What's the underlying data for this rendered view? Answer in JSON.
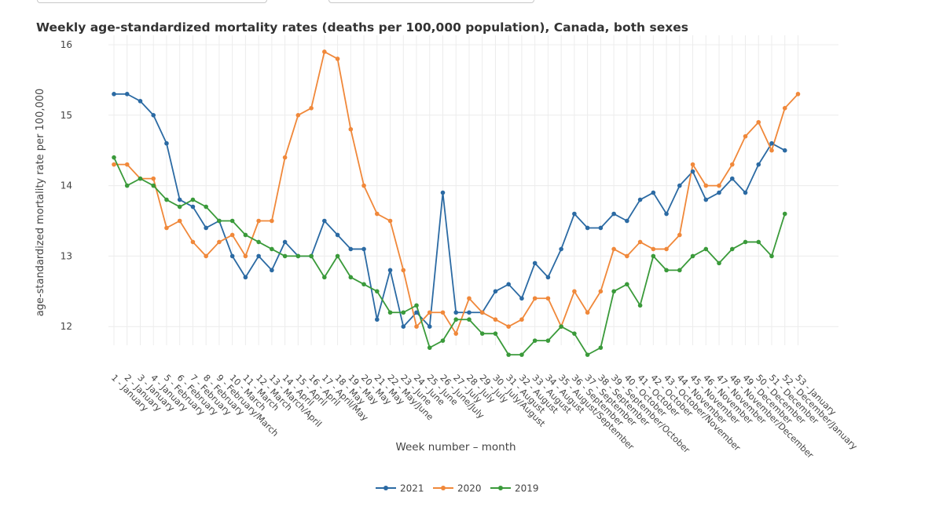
{
  "chart_data": {
    "type": "line",
    "title": "Weekly age-standardized mortality rates (deaths per 100,000 population), Canada, both sexes",
    "xlabel": "Week number – month",
    "ylabel": "age-standardized mortality rate per 100,000",
    "ylim": [
      11.4,
      16.1
    ],
    "yticks": [
      12,
      13,
      14,
      15,
      16
    ],
    "grid": true,
    "legend_position": "bottom-center",
    "categories": [
      "1 - January",
      "2 - January",
      "3 - January",
      "4 - January",
      "5 - February",
      "6 - February",
      "7 - February",
      "8 - February",
      "9 - February/March",
      "10 - March",
      "11 - March",
      "12 - March",
      "13 - March/April",
      "14 - April",
      "15 - April",
      "16 - April",
      "17 - April/May",
      "18 - May",
      "19 - May",
      "20 - May",
      "21 - May",
      "22 - May/June",
      "23 - June",
      "24 - June",
      "25 - June",
      "26 - June/July",
      "27 - July",
      "28 - July",
      "29 - July",
      "30 - July/August",
      "31 - August",
      "32 - August",
      "33 - August",
      "34 - August",
      "35 - August/September",
      "36 - September",
      "37 - September",
      "38 - September",
      "39 - September/October",
      "40 - October",
      "41 - October",
      "42 - October",
      "43 - October/November",
      "44 - November",
      "45 - November",
      "46 - November",
      "47 - November",
      "48 - November/December",
      "49 - December",
      "50 - December",
      "51 - December",
      "52 - December/January",
      "53 - January"
    ],
    "series": [
      {
        "name": "2021",
        "color": "#2b6aa3",
        "values": [
          15.3,
          15.3,
          15.2,
          15.0,
          14.6,
          13.8,
          13.7,
          13.4,
          13.5,
          13.0,
          12.7,
          13.0,
          12.8,
          13.2,
          13.0,
          13.0,
          13.5,
          13.3,
          13.1,
          13.1,
          12.1,
          12.8,
          12.0,
          12.2,
          12.0,
          13.9,
          12.2,
          12.2,
          12.2,
          12.5,
          12.6,
          12.4,
          12.9,
          12.7,
          13.1,
          13.6,
          13.4,
          13.4,
          13.6,
          13.5,
          13.8,
          13.9,
          13.6,
          14.0,
          14.2,
          13.8,
          13.9,
          14.1,
          13.9,
          14.3,
          14.6,
          14.5,
          null
        ]
      },
      {
        "name": "2020",
        "color": "#f0883a",
        "values": [
          14.3,
          14.3,
          14.1,
          14.1,
          13.4,
          13.5,
          13.2,
          13.0,
          13.2,
          13.3,
          13.0,
          13.5,
          13.5,
          14.4,
          15.0,
          15.1,
          15.9,
          15.8,
          14.8,
          14.0,
          13.6,
          13.5,
          12.8,
          12.0,
          12.2,
          12.2,
          11.9,
          12.4,
          12.2,
          12.1,
          12.0,
          12.1,
          12.4,
          12.4,
          12.0,
          12.5,
          12.2,
          12.5,
          13.1,
          13.0,
          13.2,
          13.1,
          13.1,
          13.3,
          14.3,
          14.0,
          14.0,
          14.3,
          14.7,
          14.9,
          14.5,
          15.1,
          15.3
        ]
      },
      {
        "name": "2019",
        "color": "#3a9a3a",
        "values": [
          14.4,
          14.0,
          14.1,
          14.0,
          13.8,
          13.7,
          13.8,
          13.7,
          13.5,
          13.5,
          13.3,
          13.2,
          13.1,
          13.0,
          13.0,
          13.0,
          12.7,
          13.0,
          12.7,
          12.6,
          12.5,
          12.2,
          12.2,
          12.3,
          11.7,
          11.8,
          12.1,
          12.1,
          11.9,
          11.9,
          11.6,
          11.6,
          11.8,
          11.8,
          12.0,
          11.9,
          11.6,
          11.7,
          12.5,
          12.6,
          12.3,
          13.0,
          12.8,
          12.8,
          13.0,
          13.1,
          12.9,
          13.1,
          13.2,
          13.2,
          13.0,
          13.6,
          null
        ]
      }
    ]
  }
}
